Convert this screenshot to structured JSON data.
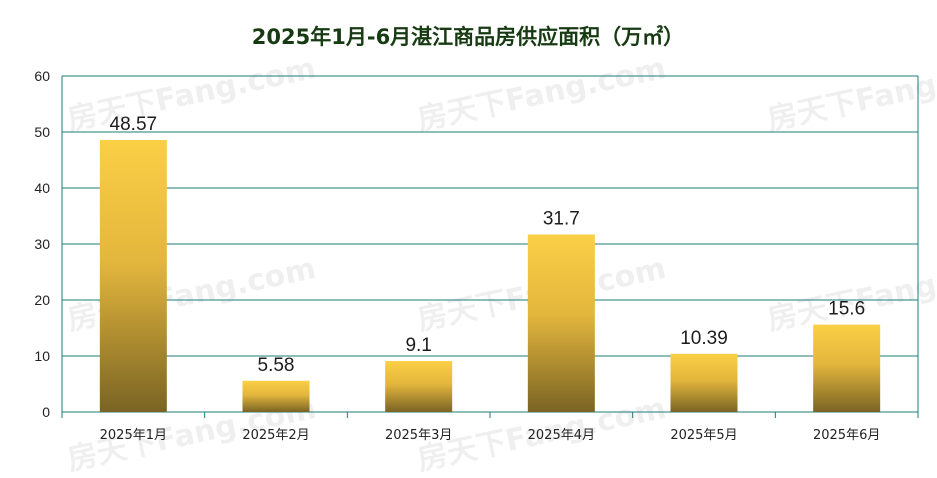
{
  "chart_data": {
    "type": "bar",
    "title": "2025年1月-6月湛江商品房供应面积（万㎡）",
    "categories": [
      "2025年1月",
      "2025年2月",
      "2025年3月",
      "2025年4月",
      "2025年5月",
      "2025年6月"
    ],
    "values": [
      48.57,
      5.58,
      9.1,
      31.7,
      10.39,
      15.6
    ],
    "value_labels": [
      "48.57",
      "5.58",
      "9.1",
      "31.7",
      "10.39",
      "15.6"
    ],
    "xlabel": "",
    "ylabel": "",
    "ylim": [
      0,
      60
    ],
    "yticks": [
      0,
      10,
      20,
      30,
      40,
      50,
      60
    ],
    "ytick_labels": [
      "0",
      "10",
      "20",
      "30",
      "40",
      "50",
      "60"
    ],
    "grid": true,
    "legend": "none",
    "colors": {
      "bar_top": "#fbcf45",
      "bar_bottom": "#7a6424",
      "grid": "#1f7a7a",
      "title": "#163a12"
    }
  },
  "watermark": {
    "text": "房天下Fang.com"
  }
}
